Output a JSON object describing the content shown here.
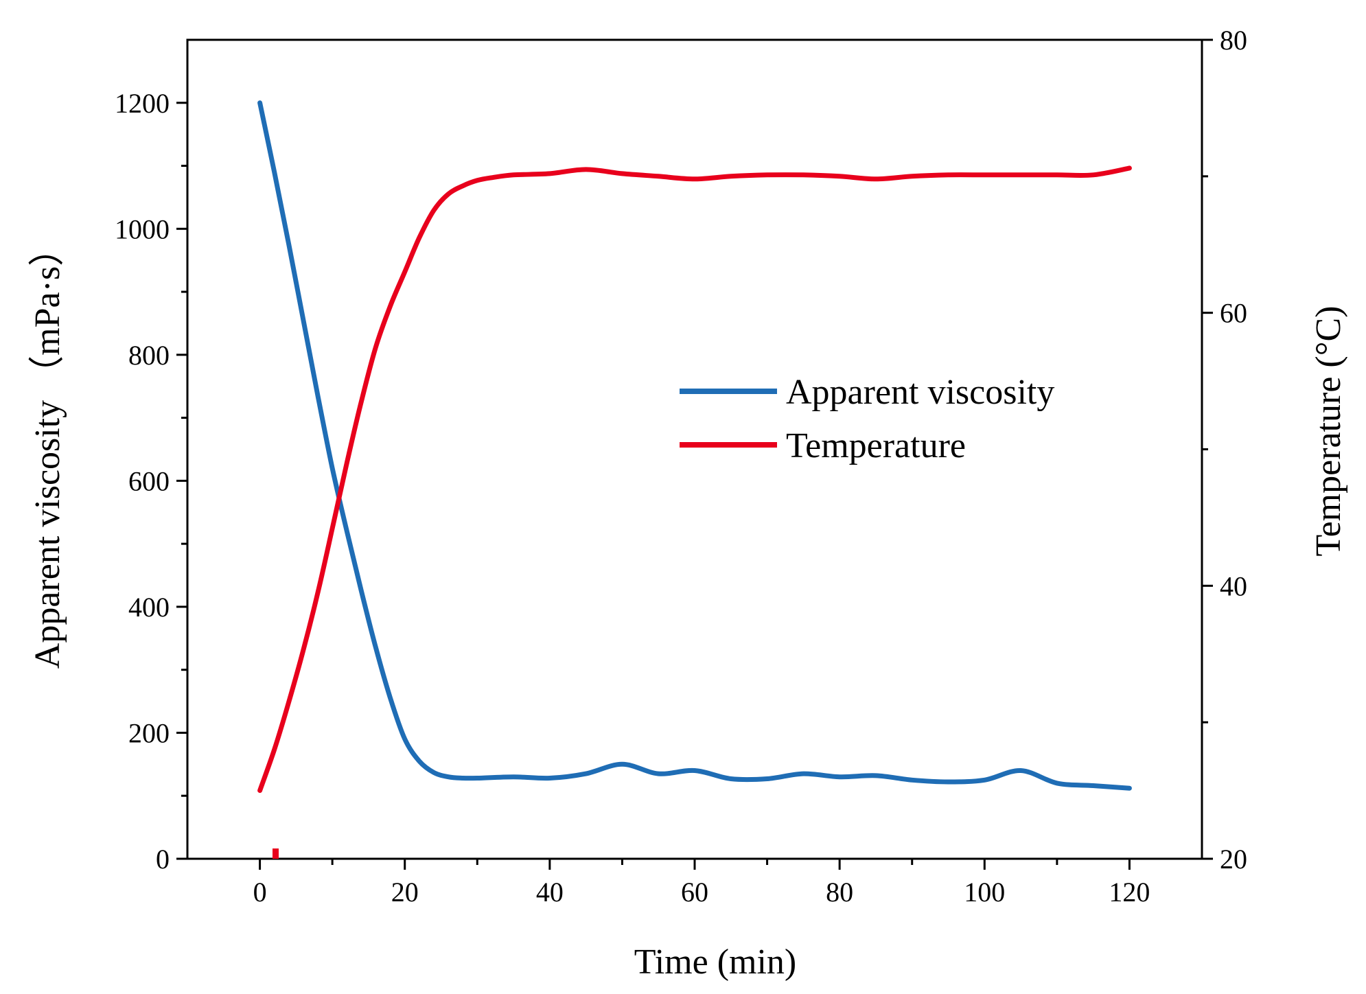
{
  "chart_data": {
    "type": "line",
    "title": "",
    "xlabel": "Time (min)",
    "ylabel_left": "Apparent viscosity （mPa·s）",
    "ylabel_right": "Temperature (°C)",
    "xlim": [
      -10,
      130
    ],
    "ylim_left": [
      0,
      1300
    ],
    "ylim_right": [
      20,
      80
    ],
    "x_ticks": [
      0,
      20,
      40,
      60,
      80,
      100,
      120
    ],
    "y_left_ticks": [
      0,
      200,
      400,
      600,
      800,
      1000,
      1200
    ],
    "y_right_ticks": [
      20,
      40,
      60,
      80
    ],
    "legend_position": "center-right",
    "series": [
      {
        "name": "Apparent viscosity",
        "axis": "left",
        "color": "#1f6db5",
        "x": [
          0,
          2,
          4,
          6,
          8,
          10,
          12,
          14,
          16,
          18,
          20,
          22,
          24,
          26,
          28,
          30,
          35,
          40,
          45,
          50,
          55,
          60,
          65,
          70,
          75,
          80,
          85,
          90,
          95,
          100,
          105,
          110,
          115,
          120
        ],
        "values": [
          1200,
          1090,
          975,
          855,
          735,
          620,
          520,
          425,
          335,
          255,
          190,
          155,
          137,
          130,
          128,
          128,
          130,
          128,
          135,
          150,
          135,
          140,
          127,
          127,
          135,
          130,
          132,
          125,
          122,
          125,
          140,
          120,
          116,
          112
        ]
      },
      {
        "name": "Temperature",
        "axis": "right",
        "color": "#e8001c",
        "x": [
          0,
          2,
          4,
          6,
          8,
          10,
          12,
          14,
          16,
          18,
          20,
          22,
          24,
          26,
          28,
          30,
          32,
          35,
          40,
          45,
          50,
          55,
          60,
          65,
          70,
          75,
          80,
          85,
          90,
          95,
          100,
          105,
          110,
          115,
          120
        ],
        "values": [
          25,
          28,
          31.5,
          35.3,
          39.5,
          44.2,
          49,
          53.5,
          57.5,
          60.5,
          63,
          65.5,
          67.5,
          68.7,
          69.3,
          69.7,
          69.9,
          70.1,
          70.2,
          70.5,
          70.2,
          70,
          69.8,
          70,
          70.1,
          70.1,
          70,
          69.8,
          70,
          70.1,
          70.1,
          70.1,
          70.1,
          70.1,
          70.6
        ]
      }
    ]
  }
}
